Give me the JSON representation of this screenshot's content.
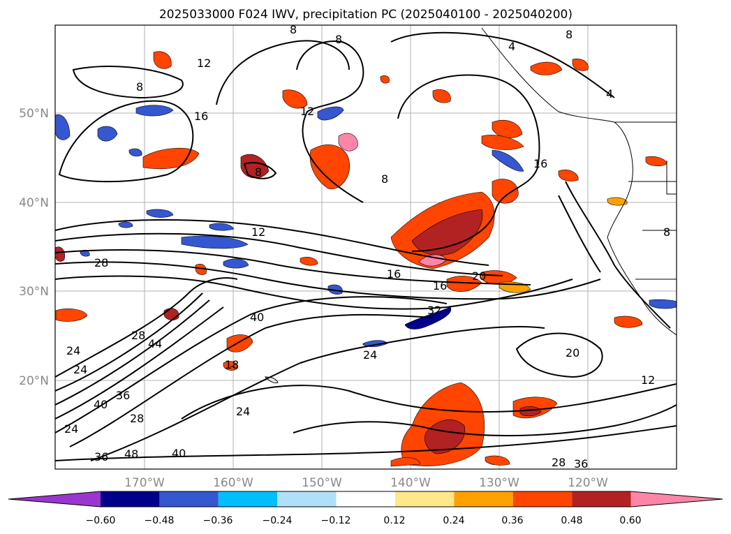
{
  "title": "2025033000 F024 IWV, precipitation PC (2025040100 - 2025040200)",
  "map": {
    "lon_labels": [
      "170°W",
      "160°W",
      "150°W",
      "140°W",
      "130°W",
      "120°W"
    ],
    "lat_labels": [
      "50°N",
      "40°N",
      "30°N",
      "20°N"
    ],
    "grid": true,
    "contour_labels": [
      "8",
      "12",
      "16",
      "8",
      "12",
      "4",
      "8",
      "4",
      "8",
      "16",
      "8",
      "16",
      "12",
      "28",
      "16",
      "20",
      "24",
      "32",
      "40",
      "24",
      "44",
      "28",
      "24",
      "24",
      "40",
      "36",
      "28",
      "24",
      "18",
      "36",
      "48",
      "40",
      "20",
      "12",
      "28",
      "36",
      "8",
      "8"
    ]
  },
  "colorbar": {
    "ticks": [
      "−0.60",
      "−0.48",
      "−0.36",
      "−0.24",
      "−0.12",
      "0.12",
      "0.24",
      "0.36",
      "0.48",
      "0.60"
    ],
    "colors": [
      "#9a36d0",
      "#00008b",
      "#3557cf",
      "#00bfff",
      "#b0e0f8",
      "#ffffff",
      "#ffe88a",
      "#ffa200",
      "#ff4500",
      "#b22222",
      "#ff85a8"
    ],
    "extend": "both"
  }
}
